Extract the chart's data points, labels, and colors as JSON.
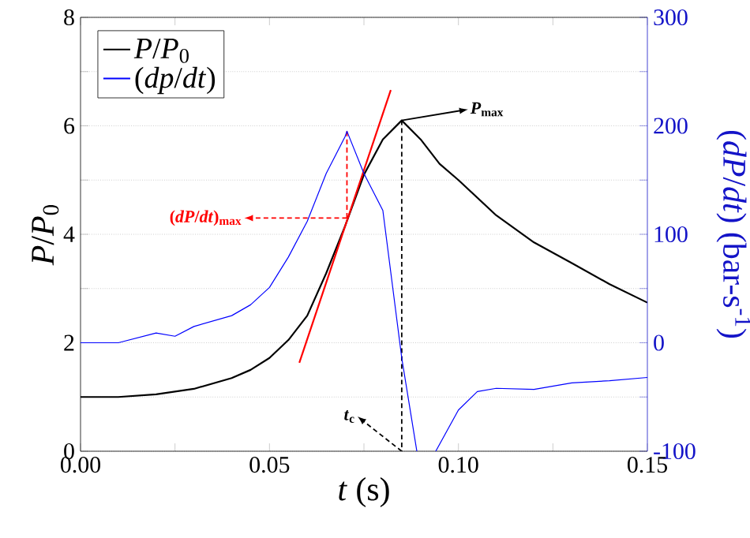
{
  "chart_data": {
    "type": "line",
    "xlabel": "*t* (s)",
    "ylabel": "*P*/*P*$_{0}$",
    "y2label": "(*dP*/*dt*) (bar-s$^{-1}$)",
    "xlim": [
      0,
      0.15
    ],
    "ylim": [
      0,
      8
    ],
    "y2lim": [
      -100,
      300
    ],
    "xticks": [
      {
        "value": 0,
        "label": "0.00"
      },
      {
        "value": 0.025,
        "label": null
      },
      {
        "value": 0.05,
        "label": "0.05"
      },
      {
        "value": 0.075,
        "label": null
      },
      {
        "value": 0.1,
        "label": "0.10"
      },
      {
        "value": 0.125,
        "label": null
      },
      {
        "value": 0.15,
        "label": "0.15"
      }
    ],
    "yticks": [
      0,
      {
        "value": 1,
        "label": null
      },
      2,
      {
        "value": 3,
        "label": null
      },
      4,
      {
        "value": 5,
        "label": null
      },
      6,
      {
        "value": 7,
        "label": null
      },
      8
    ],
    "y2ticks": [
      -100,
      {
        "value": -50,
        "label": null
      },
      0,
      {
        "value": 50,
        "label": null
      },
      100,
      {
        "value": 150,
        "label": null
      },
      200,
      {
        "value": 250,
        "label": null
      },
      300
    ],
    "grid": "y",
    "legend": "top left",
    "series": [
      {
        "name": "*P*/*P*$_{0}$",
        "color": "#000000",
        "x": [
          0,
          0.01,
          0.02,
          0.03,
          0.04,
          0.045,
          0.05,
          0.055,
          0.06,
          0.065,
          0.07,
          0.075,
          0.08,
          0.085,
          0.09,
          0.095,
          0.1,
          0.11,
          0.12,
          0.13,
          0.14,
          0.15
        ],
        "values": [
          1.0,
          1.0,
          1.05,
          1.15,
          1.35,
          1.5,
          1.72,
          2.05,
          2.5,
          3.28,
          4.15,
          5.1,
          5.75,
          6.1,
          5.75,
          5.3,
          5.0,
          4.35,
          3.85,
          3.47,
          3.08,
          2.74
        ]
      },
      {
        "name": "(*dp*/*dt*)",
        "color": "#0000ff",
        "axis": "y2",
        "x": [
          0,
          0.01,
          0.02,
          0.025,
          0.03,
          0.04,
          0.045,
          0.05,
          0.055,
          0.06,
          0.065,
          0.07,
          0.0705,
          0.075,
          0.08,
          0.085,
          0.089,
          0.0915,
          0.094,
          0.1,
          0.105,
          0.11,
          0.12,
          0.13,
          0.14,
          0.15
        ],
        "values": [
          0,
          0,
          9,
          6,
          15,
          25,
          35,
          51,
          79,
          112,
          156,
          190,
          195,
          156,
          122,
          -14,
          -100,
          null,
          -100,
          -62,
          -45,
          -42,
          -43,
          -37,
          -35,
          -32
        ]
      },
      {
        "type": "line",
        "color": "#ff0000",
        "x": [
          0.0579,
          0.0821
        ],
        "values": [
          1.63,
          6.66
        ]
      },
      {
        "type": "line",
        "color": "#ff0000",
        "line_style": "dashed",
        "x": [
          0.0705,
          0.0705
        ],
        "values": [
          4.3,
          5.9
        ]
      }
    ],
    "annotations": [
      {
        "text": "(*dP*/*dt*)$_{max}$",
        "x": 0.0705,
        "y": 4.3
      },
      {
        "text": "*P*$_{max}$",
        "x": 0.085,
        "y": 6.1
      },
      "*t*$_{c}$"
    ]
  }
}
